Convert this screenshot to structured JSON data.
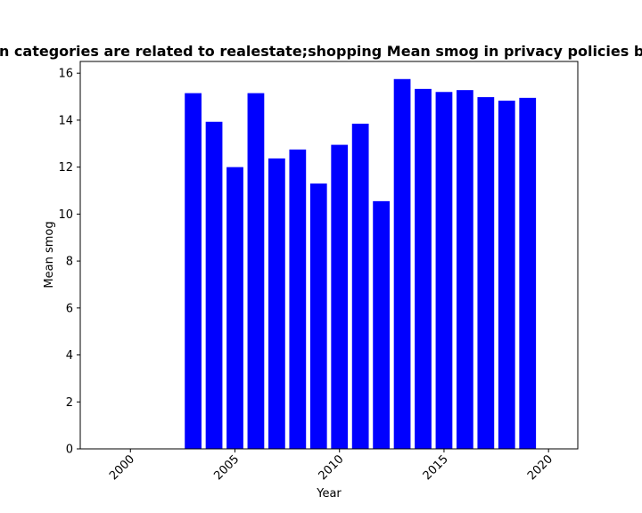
{
  "chart_data": {
    "type": "bar",
    "title": "Domain categories are related to realestate;shopping Mean smog in privacy policies by year",
    "xlabel": "Year",
    "ylabel": "Mean smog",
    "xlim": [
      1997.6,
      2021.4
    ],
    "ylim": [
      0,
      16.5
    ],
    "x_ticks": [
      2000,
      2005,
      2010,
      2015,
      2020
    ],
    "y_ticks": [
      0,
      2,
      4,
      6,
      8,
      10,
      12,
      14,
      16
    ],
    "bar_color": "#0000ff",
    "x": [
      2003,
      2004,
      2005,
      2006,
      2007,
      2008,
      2009,
      2010,
      2011,
      2012,
      2013,
      2014,
      2015,
      2016,
      2017,
      2018,
      2019
    ],
    "values": [
      15.15,
      13.93,
      12.0,
      15.15,
      12.37,
      12.75,
      11.3,
      12.95,
      13.85,
      10.55,
      15.75,
      15.33,
      15.2,
      15.28,
      14.98,
      14.83,
      14.95
    ],
    "grid": false,
    "legend": "none"
  }
}
